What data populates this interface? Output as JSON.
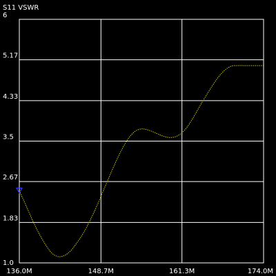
{
  "chart_data": {
    "type": "line",
    "title": "S11 VSWR",
    "xlabel": "",
    "ylabel": "",
    "x_unit_suffix": "M",
    "xlim": [
      136.0,
      174.0
    ],
    "ylim": [
      1.0,
      6.0
    ],
    "x_ticks": [
      136.0,
      148.7,
      161.3,
      174.0
    ],
    "x_tick_labels": [
      "136.0M",
      "148.7M",
      "161.3M",
      "174.0M"
    ],
    "y_ticks": [
      1.0,
      1.83,
      2.67,
      3.5,
      4.33,
      5.17,
      6.0
    ],
    "y_tick_labels": [
      "1.0",
      "1.83",
      "2.67",
      "3.5",
      "4.33",
      "5.17",
      "6"
    ],
    "grid": true,
    "background_color": "#000000",
    "grid_color": "#ffffff",
    "text_color": "#ffffff",
    "series": [
      {
        "line_color": "#d9d900",
        "line_style": "dotted",
        "x": [
          136.0,
          137.0,
          138.0,
          139.0,
          140.0,
          141.0,
          142.0,
          143.0,
          144.0,
          145.0,
          146.0,
          147.0,
          148.0,
          149.0,
          150.0,
          151.0,
          152.0,
          153.0,
          154.0,
          155.0,
          156.0,
          157.0,
          158.0,
          159.0,
          160.0,
          161.0,
          162.0,
          163.0,
          164.0,
          165.0,
          166.0,
          167.0,
          168.0,
          169.0,
          170.0,
          171.0,
          172.0,
          173.0,
          174.0
        ],
        "y": [
          2.48,
          2.19,
          1.89,
          1.62,
          1.39,
          1.21,
          1.13,
          1.15,
          1.25,
          1.42,
          1.62,
          1.87,
          2.15,
          2.46,
          2.77,
          3.07,
          3.34,
          3.56,
          3.7,
          3.75,
          3.73,
          3.68,
          3.62,
          3.58,
          3.58,
          3.64,
          3.77,
          3.97,
          4.2,
          4.42,
          4.63,
          4.82,
          4.96,
          5.04,
          5.05,
          5.05,
          5.05,
          5.05,
          5.05
        ]
      }
    ],
    "marker": {
      "x": 136.0,
      "y": 2.48,
      "shape": "triangle-down",
      "color": "#3a3aff"
    }
  }
}
